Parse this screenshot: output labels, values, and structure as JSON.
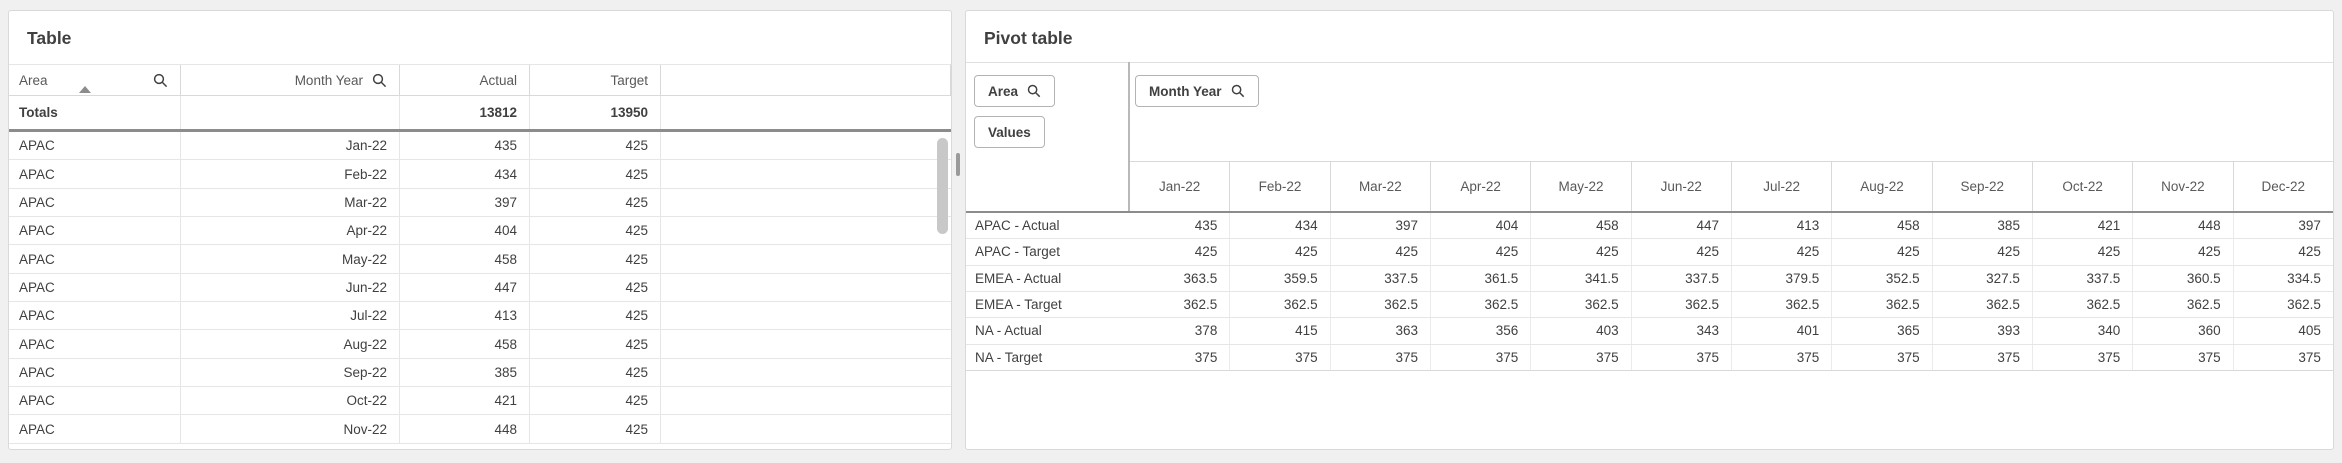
{
  "colors": {
    "header_separator": "#8c8c8c",
    "text_primary": "#404040",
    "text_secondary": "#595959",
    "scrollbar_thumb": "#c8c8c8",
    "chip_border": "#b3b3b3"
  },
  "left_panel": {
    "title": "Table",
    "columns": [
      {
        "label": "Area",
        "searchable": true,
        "sorted": "ascending"
      },
      {
        "label": "Month Year",
        "searchable": true
      },
      {
        "label": "Actual"
      },
      {
        "label": "Target"
      }
    ],
    "totals": {
      "label": "Totals",
      "actual": "13812",
      "target": "13950"
    },
    "rows": [
      {
        "area": "APAC",
        "month": "Jan-22",
        "actual": "435",
        "target": "425"
      },
      {
        "area": "APAC",
        "month": "Feb-22",
        "actual": "434",
        "target": "425"
      },
      {
        "area": "APAC",
        "month": "Mar-22",
        "actual": "397",
        "target": "425"
      },
      {
        "area": "APAC",
        "month": "Apr-22",
        "actual": "404",
        "target": "425"
      },
      {
        "area": "APAC",
        "month": "May-22",
        "actual": "458",
        "target": "425"
      },
      {
        "area": "APAC",
        "month": "Jun-22",
        "actual": "447",
        "target": "425"
      },
      {
        "area": "APAC",
        "month": "Jul-22",
        "actual": "413",
        "target": "425"
      },
      {
        "area": "APAC",
        "month": "Aug-22",
        "actual": "458",
        "target": "425"
      },
      {
        "area": "APAC",
        "month": "Sep-22",
        "actual": "385",
        "target": "425"
      },
      {
        "area": "APAC",
        "month": "Oct-22",
        "actual": "421",
        "target": "425"
      },
      {
        "area": "APAC",
        "month": "Nov-22",
        "actual": "448",
        "target": "425"
      }
    ]
  },
  "right_panel": {
    "title": "Pivot table",
    "row_chip": {
      "label": "Area",
      "searchable": true
    },
    "values_chip": {
      "label": "Values"
    },
    "column_chip": {
      "label": "Month Year",
      "searchable": true
    },
    "columns": [
      "Jan-22",
      "Feb-22",
      "Mar-22",
      "Apr-22",
      "May-22",
      "Jun-22",
      "Jul-22",
      "Aug-22",
      "Sep-22",
      "Oct-22",
      "Nov-22",
      "Dec-22"
    ],
    "rows": [
      {
        "label": "APAC - Actual",
        "values": [
          "435",
          "434",
          "397",
          "404",
          "458",
          "447",
          "413",
          "458",
          "385",
          "421",
          "448",
          "397"
        ]
      },
      {
        "label": "APAC - Target",
        "values": [
          "425",
          "425",
          "425",
          "425",
          "425",
          "425",
          "425",
          "425",
          "425",
          "425",
          "425",
          "425"
        ]
      },
      {
        "label": "EMEA - Actual",
        "values": [
          "363.5",
          "359.5",
          "337.5",
          "361.5",
          "341.5",
          "337.5",
          "379.5",
          "352.5",
          "327.5",
          "337.5",
          "360.5",
          "334.5"
        ]
      },
      {
        "label": "EMEA - Target",
        "values": [
          "362.5",
          "362.5",
          "362.5",
          "362.5",
          "362.5",
          "362.5",
          "362.5",
          "362.5",
          "362.5",
          "362.5",
          "362.5",
          "362.5"
        ]
      },
      {
        "label": "NA - Actual",
        "values": [
          "378",
          "415",
          "363",
          "356",
          "403",
          "343",
          "401",
          "365",
          "393",
          "340",
          "360",
          "405"
        ]
      },
      {
        "label": "NA - Target",
        "values": [
          "375",
          "375",
          "375",
          "375",
          "375",
          "375",
          "375",
          "375",
          "375",
          "375",
          "375",
          "375"
        ]
      }
    ]
  }
}
